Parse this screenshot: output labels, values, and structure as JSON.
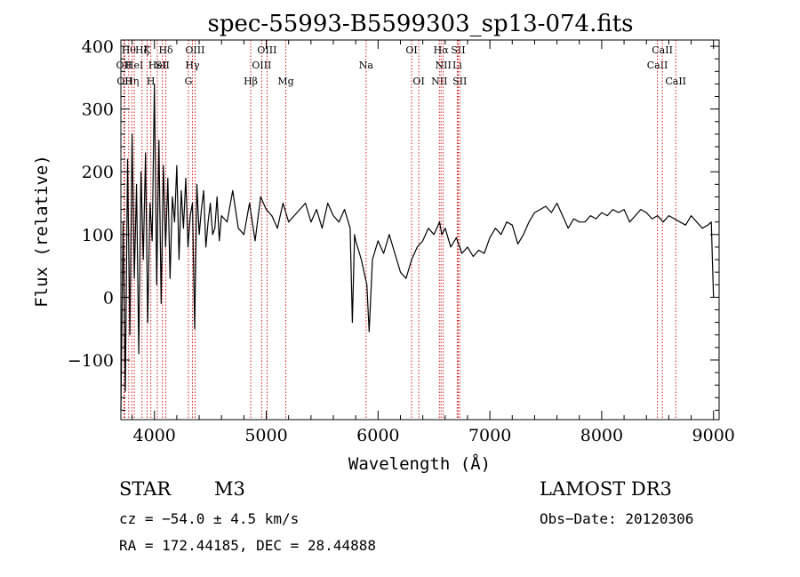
{
  "chart_data": {
    "type": "line",
    "title": "spec-55993-B5599303_sp13-074.fits",
    "xlabel": "Wavelength (Å)",
    "ylabel": "Flux (relative)",
    "xlim": [
      3700,
      9050
    ],
    "ylim": [
      -195,
      410
    ],
    "xticks": [
      4000,
      5000,
      6000,
      7000,
      8000,
      9000
    ],
    "yticks": [
      -100,
      0,
      100,
      200,
      300,
      400
    ],
    "line_color": "#000000",
    "marker_color": "#cc0000",
    "series": [
      {
        "name": "spectrum",
        "x": [
          3700,
          3720,
          3740,
          3760,
          3780,
          3800,
          3820,
          3840,
          3860,
          3880,
          3900,
          3920,
          3940,
          3960,
          3980,
          4000,
          4020,
          4040,
          4060,
          4080,
          4100,
          4120,
          4140,
          4160,
          4180,
          4200,
          4220,
          4240,
          4260,
          4280,
          4300,
          4320,
          4340,
          4360,
          4380,
          4400,
          4420,
          4440,
          4460,
          4480,
          4500,
          4520,
          4540,
          4560,
          4580,
          4600,
          4650,
          4700,
          4750,
          4800,
          4850,
          4900,
          4950,
          5000,
          5050,
          5100,
          5150,
          5200,
          5250,
          5300,
          5350,
          5400,
          5450,
          5500,
          5550,
          5600,
          5650,
          5700,
          5750,
          5770,
          5790,
          5800,
          5850,
          5900,
          5920,
          5950,
          6000,
          6050,
          6100,
          6150,
          6200,
          6250,
          6300,
          6350,
          6400,
          6450,
          6500,
          6550,
          6570,
          6600,
          6650,
          6700,
          6750,
          6800,
          6850,
          6900,
          6950,
          7000,
          7050,
          7100,
          7150,
          7200,
          7250,
          7300,
          7350,
          7400,
          7450,
          7500,
          7550,
          7600,
          7650,
          7700,
          7750,
          7800,
          7850,
          7900,
          7950,
          8000,
          8050,
          8100,
          8150,
          8200,
          8250,
          8300,
          8350,
          8400,
          8450,
          8500,
          8550,
          8600,
          8650,
          8700,
          8750,
          8800,
          8850,
          8900,
          8950,
          8980,
          9000
        ],
        "y": [
          -180,
          120,
          -150,
          220,
          -60,
          260,
          30,
          180,
          -90,
          200,
          60,
          230,
          -40,
          150,
          90,
          340,
          20,
          250,
          -10,
          210,
          80,
          190,
          30,
          160,
          120,
          210,
          60,
          170,
          110,
          190,
          80,
          130,
          150,
          -50,
          180,
          100,
          140,
          170,
          80,
          120,
          150,
          100,
          110,
          160,
          90,
          130,
          120,
          170,
          110,
          100,
          150,
          90,
          160,
          140,
          130,
          110,
          150,
          120,
          130,
          140,
          150,
          120,
          140,
          110,
          150,
          130,
          120,
          140,
          110,
          -40,
          100,
          90,
          60,
          20,
          -55,
          60,
          90,
          70,
          100,
          70,
          40,
          30,
          60,
          80,
          90,
          110,
          100,
          120,
          100,
          110,
          80,
          95,
          70,
          80,
          65,
          75,
          70,
          95,
          110,
          100,
          120,
          115,
          85,
          100,
          120,
          135,
          140,
          145,
          135,
          150,
          130,
          110,
          125,
          120,
          120,
          130,
          125,
          135,
          130,
          140,
          135,
          140,
          120,
          130,
          140,
          135,
          125,
          130,
          120,
          130,
          125,
          120,
          115,
          130,
          120,
          110,
          115,
          120,
          0
        ]
      }
    ],
    "line_markers": [
      {
        "x": 3727,
        "label": "OII",
        "row": 1
      },
      {
        "x": 3734,
        "label": "OII",
        "row": 2
      },
      {
        "x": 3770,
        "label": "Hθ",
        "row": 0
      },
      {
        "x": 3798,
        "label": "Hη",
        "row": 2
      },
      {
        "x": 3820,
        "label": "HeI",
        "row": 1
      },
      {
        "x": 3889,
        "label": "Hζ",
        "row": 0
      },
      {
        "x": 3934,
        "label": "K",
        "row": 0
      },
      {
        "x": 3968,
        "label": "H",
        "row": 2
      },
      {
        "x": 4026,
        "label": "HeI",
        "row": 1
      },
      {
        "x": 4072,
        "label": "SII",
        "row": 1
      },
      {
        "x": 4102,
        "label": "Hδ",
        "row": 0
      },
      {
        "x": 4304,
        "label": "G",
        "row": 2
      },
      {
        "x": 4340,
        "label": "Hγ",
        "row": 1
      },
      {
        "x": 4363,
        "label": "OIII",
        "row": 0
      },
      {
        "x": 4861,
        "label": "Hβ",
        "row": 2
      },
      {
        "x": 4959,
        "label": "OIII",
        "row": 1
      },
      {
        "x": 5007,
        "label": "OIII",
        "row": 0
      },
      {
        "x": 5175,
        "label": "Mg",
        "row": 2
      },
      {
        "x": 5893,
        "label": "Na",
        "row": 1
      },
      {
        "x": 6300,
        "label": "OI",
        "row": 0
      },
      {
        "x": 6364,
        "label": "OI",
        "row": 2
      },
      {
        "x": 6548,
        "label": "NII",
        "row": 2
      },
      {
        "x": 6563,
        "label": "Hα",
        "row": 0
      },
      {
        "x": 6583,
        "label": "NII",
        "row": 1
      },
      {
        "x": 6708,
        "label": "Li",
        "row": 1
      },
      {
        "x": 6717,
        "label": "SII",
        "row": 0
      },
      {
        "x": 6731,
        "label": "SII",
        "row": 2
      },
      {
        "x": 8498,
        "label": "CaII",
        "row": 1
      },
      {
        "x": 8542,
        "label": "CaII",
        "row": 0
      },
      {
        "x": 8662,
        "label": "CaII",
        "row": 2
      }
    ]
  },
  "info": {
    "class": "STAR",
    "subclass": "M3",
    "survey": "LAMOST DR3",
    "cz": "cz = −54.0 ± 4.5 km/s",
    "obs_date": "Obs−Date: 20120306",
    "coords": "RA = 172.44185, DEC =  28.44888"
  }
}
